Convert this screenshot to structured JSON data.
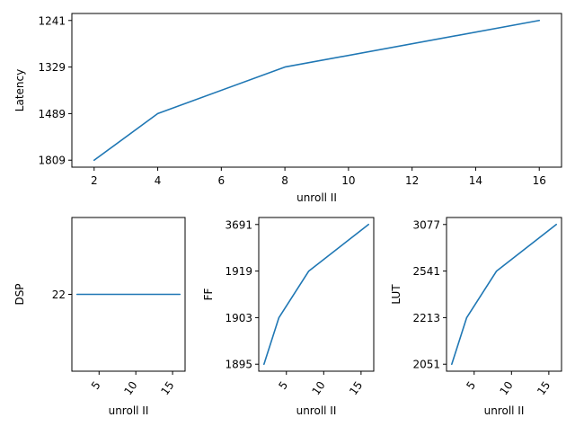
{
  "colors": {
    "series": "#1f77b4",
    "axis": "#000000"
  },
  "chart_data": [
    {
      "type": "line",
      "xlabel": "unroll II",
      "ylabel": "Latency",
      "x": [
        2,
        4,
        8,
        16
      ],
      "y_categories": [
        "1809",
        "1489",
        "1329",
        "1241"
      ],
      "y_index": [
        0,
        1,
        2,
        3
      ],
      "xlim": [
        1.3,
        16.7
      ],
      "ylim": [
        -0.15,
        3.15
      ],
      "xticks": [
        2,
        4,
        6,
        8,
        10,
        12,
        14,
        16
      ],
      "grid": false
    },
    {
      "type": "line",
      "xlabel": "unroll II",
      "ylabel": "DSP",
      "x": [
        2,
        4,
        8,
        16
      ],
      "y_categories": [
        "22"
      ],
      "y_index": [
        0,
        0,
        0,
        0
      ],
      "xlim": [
        1.3,
        16.7
      ],
      "ylim": [
        -1,
        1
      ],
      "xticks": [
        5,
        10,
        15
      ],
      "grid": false
    },
    {
      "type": "line",
      "xlabel": "unroll II",
      "ylabel": "FF",
      "x": [
        2,
        4,
        8,
        16
      ],
      "y_categories": [
        "1895",
        "1903",
        "1919",
        "3691"
      ],
      "y_index": [
        0,
        1,
        2,
        3
      ],
      "xlim": [
        1.3,
        16.7
      ],
      "ylim": [
        -0.15,
        3.15
      ],
      "xticks": [
        5,
        10,
        15
      ],
      "grid": false
    },
    {
      "type": "line",
      "xlabel": "unroll II",
      "ylabel": "LUT",
      "x": [
        2,
        4,
        8,
        16
      ],
      "y_categories": [
        "2051",
        "2213",
        "2541",
        "3077"
      ],
      "y_index": [
        0,
        1,
        2,
        3
      ],
      "xlim": [
        1.3,
        16.7
      ],
      "ylim": [
        -0.15,
        3.15
      ],
      "xticks": [
        5,
        10,
        15
      ],
      "grid": false
    }
  ]
}
